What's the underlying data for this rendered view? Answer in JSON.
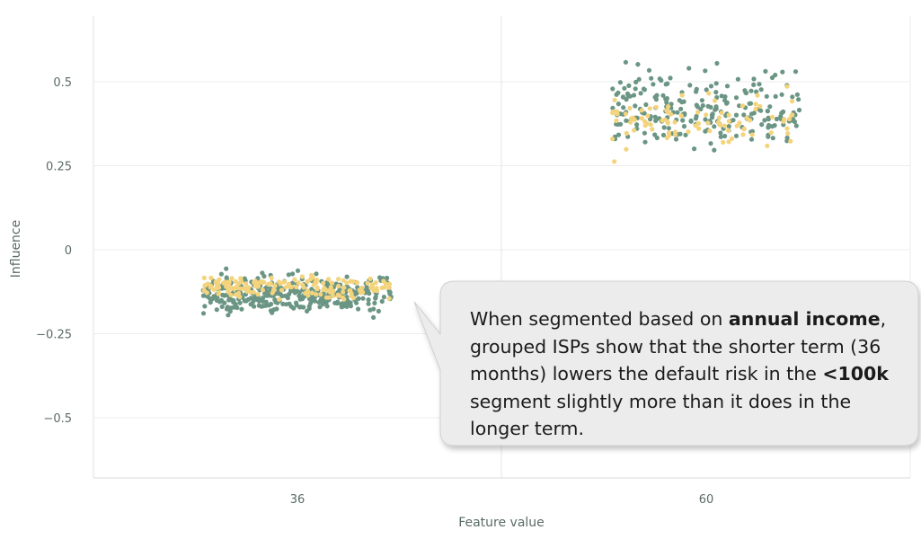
{
  "chart_data": {
    "type": "scatter",
    "title": "",
    "xlabel": "Feature value",
    "ylabel": "Influence",
    "categories": [
      "36",
      "60"
    ],
    "ylim": [
      -0.68,
      0.68
    ],
    "y_ticks": [
      0.5,
      0.25,
      0,
      -0.25,
      -0.5
    ],
    "y_tick_labels": [
      "0.5",
      "0.25",
      "0",
      "−0.25",
      "−0.5"
    ],
    "grid": true,
    "colors": {
      "green": "#6b9584",
      "yellow": "#f3d37c"
    },
    "series": [
      {
        "color": "green",
        "category": "36",
        "y_center": -0.135,
        "y_spread": 0.048,
        "count": 340
      },
      {
        "color": "yellow",
        "category": "36",
        "y_center": -0.11,
        "y_spread": 0.03,
        "count": 170
      },
      {
        "color": "green",
        "category": "60",
        "y_center": 0.42,
        "y_spread": 0.1,
        "count": 230
      },
      {
        "color": "yellow",
        "category": "60",
        "y_center": 0.38,
        "y_spread": 0.07,
        "count": 90
      }
    ]
  },
  "callout": {
    "parts": [
      {
        "text": "When segmented based on ",
        "bold": false
      },
      {
        "text": "annual income",
        "bold": true
      },
      {
        "text": ", grouped ISPs show that the shorter term (36 months) lowers the default risk in the ",
        "bold": false
      },
      {
        "text": "<100k",
        "bold": true
      },
      {
        "text": " segment slightly more than it does in the longer term.",
        "bold": false
      }
    ]
  }
}
